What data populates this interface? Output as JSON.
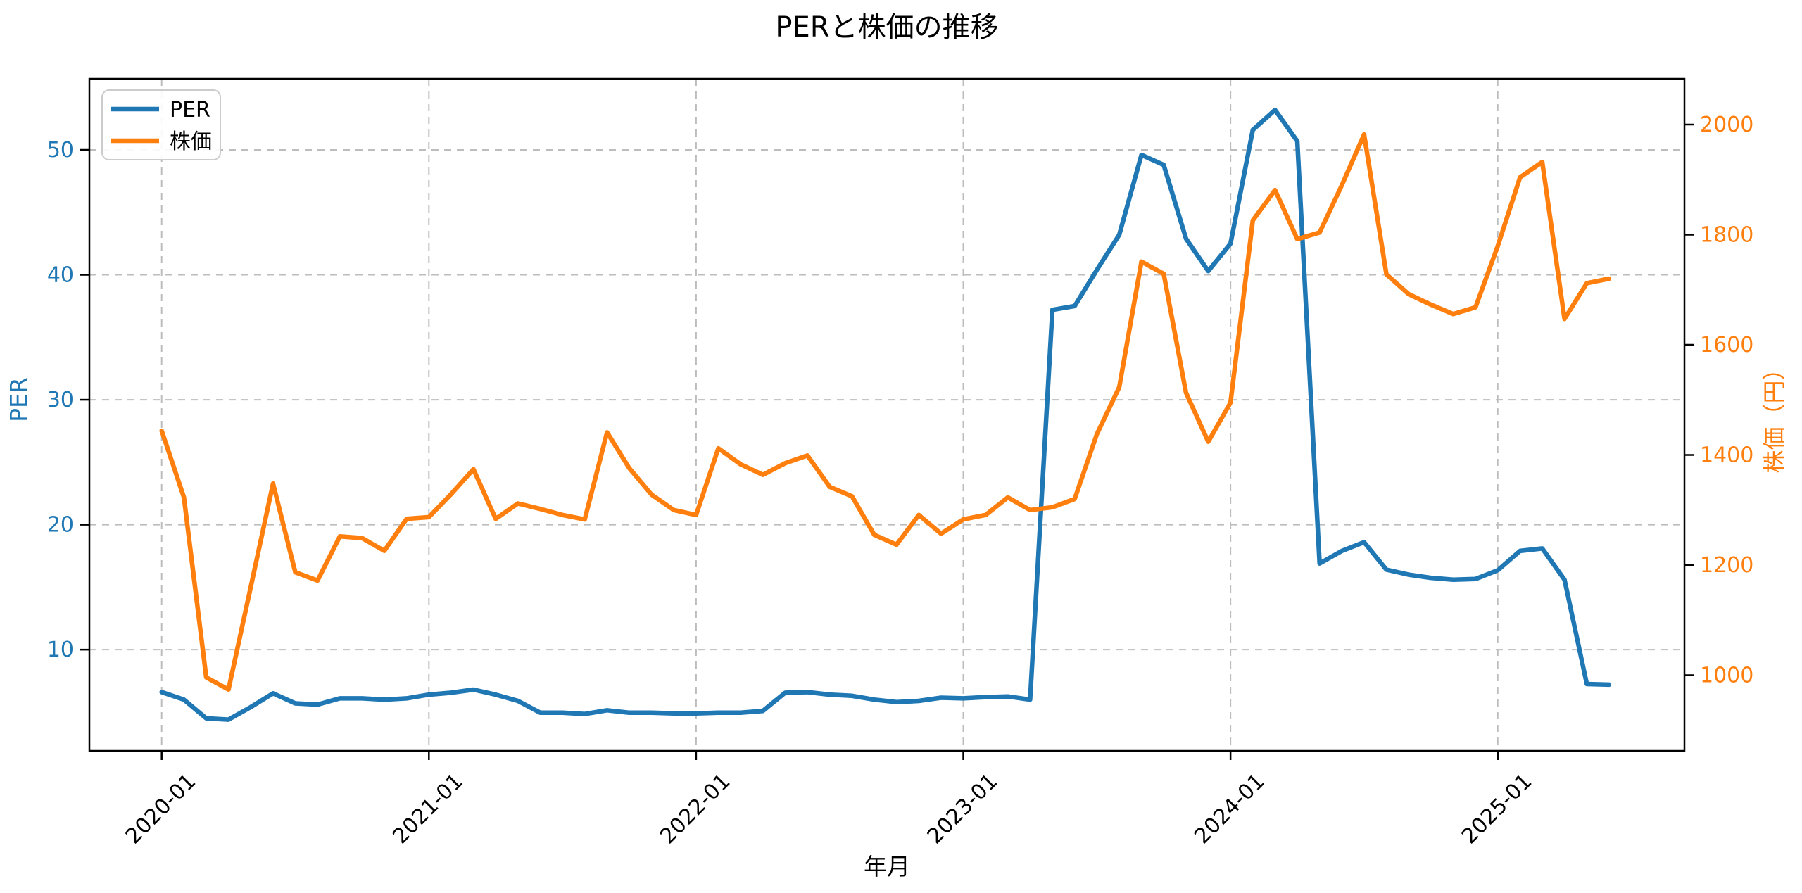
{
  "figure": {
    "title": "PERと株価の推移",
    "x_axis_label": "年月",
    "left_axis_label": "PER",
    "right_axis_label": "株価（円）",
    "colors": {
      "per_line": "#1f77b4",
      "price_line": "#ff7f0e",
      "grid": "#bdbdbd",
      "spine": "#000000",
      "left_tick_label": "#1f77b4",
      "right_tick_label": "#ff7f0e",
      "x_tick_label": "#000000",
      "legend_border": "#cccccc"
    },
    "legend": {
      "items": [
        {
          "label": "PER",
          "color": "#1f77b4"
        },
        {
          "label": "株価",
          "color": "#ff7f0e"
        }
      ]
    },
    "x_ticks": [
      {
        "label": "2020-01",
        "index": 0
      },
      {
        "label": "2021-01",
        "index": 12
      },
      {
        "label": "2022-01",
        "index": 24
      },
      {
        "label": "2023-01",
        "index": 36
      },
      {
        "label": "2024-01",
        "index": 48
      },
      {
        "label": "2025-01",
        "index": 60
      }
    ],
    "left_ticks": [
      10,
      20,
      30,
      40,
      50
    ],
    "right_ticks": [
      1000,
      1200,
      1400,
      1600,
      1800,
      2000
    ]
  },
  "chart_data": {
    "type": "line",
    "title": "PERと株価の推移",
    "xlabel": "年月",
    "ylabel_left": "PER",
    "ylabel_right": "株価（円）",
    "grid": true,
    "legend_position": "upper left",
    "ylim_left": [
      1.9,
      55.7
    ],
    "ylim_right": [
      860,
      2083
    ],
    "x": [
      "2020-01",
      "2020-02",
      "2020-03",
      "2020-04",
      "2020-05",
      "2020-06",
      "2020-07",
      "2020-08",
      "2020-09",
      "2020-10",
      "2020-11",
      "2020-12",
      "2021-01",
      "2021-02",
      "2021-03",
      "2021-04",
      "2021-05",
      "2021-06",
      "2021-07",
      "2021-08",
      "2021-09",
      "2021-10",
      "2021-11",
      "2021-12",
      "2022-01",
      "2022-02",
      "2022-03",
      "2022-04",
      "2022-05",
      "2022-06",
      "2022-07",
      "2022-08",
      "2022-09",
      "2022-10",
      "2022-11",
      "2022-12",
      "2023-01",
      "2023-02",
      "2023-03",
      "2023-04",
      "2023-05",
      "2023-06",
      "2023-07",
      "2023-08",
      "2023-09",
      "2023-10",
      "2023-11",
      "2023-12",
      "2024-01",
      "2024-02",
      "2024-03",
      "2024-04",
      "2024-05",
      "2024-06",
      "2024-07",
      "2024-08",
      "2024-09",
      "2024-10",
      "2024-11",
      "2024-12",
      "2025-01",
      "2025-02",
      "2025-03",
      "2025-04",
      "2025-05",
      "2025-06"
    ],
    "series": [
      {
        "name": "PER",
        "axis": "left",
        "color": "#1f77b4",
        "values": [
          6.6,
          6.0,
          4.5,
          4.4,
          5.4,
          6.5,
          5.7,
          5.6,
          6.1,
          6.1,
          6.0,
          6.1,
          6.4,
          6.55,
          6.8,
          6.4,
          5.9,
          4.95,
          4.95,
          4.85,
          5.15,
          4.95,
          4.95,
          4.9,
          4.9,
          4.95,
          4.95,
          5.1,
          6.55,
          6.6,
          6.4,
          6.3,
          6.0,
          5.8,
          5.9,
          6.15,
          6.1,
          6.2,
          6.25,
          6.0,
          37.2,
          37.5,
          40.4,
          43.2,
          49.6,
          48.8,
          42.9,
          40.3,
          42.5,
          51.6,
          53.2,
          50.7,
          16.9,
          17.9,
          18.6,
          16.4,
          16.0,
          15.75,
          15.6,
          15.65,
          16.35,
          17.9,
          18.1,
          15.6,
          7.25,
          7.2
        ]
      },
      {
        "name": "株価",
        "axis": "right",
        "color": "#ff7f0e",
        "values": [
          1444,
          1323,
          996,
          974,
          1160,
          1348,
          1187,
          1172,
          1252,
          1249,
          1226,
          1284,
          1287,
          1329,
          1374,
          1284,
          1312,
          1302,
          1291,
          1283,
          1441,
          1376,
          1328,
          1300,
          1291,
          1412,
          1383,
          1364,
          1385,
          1399,
          1342,
          1325,
          1255,
          1237,
          1291,
          1257,
          1283,
          1291,
          1323,
          1300,
          1305,
          1320,
          1438,
          1523,
          1751,
          1729,
          1513,
          1424,
          1495,
          1826,
          1881,
          1792,
          1804,
          1890,
          1982,
          1728,
          1692,
          1673,
          1656,
          1668,
          1779,
          1904,
          1932,
          1647,
          1712,
          1720
        ]
      }
    ]
  }
}
